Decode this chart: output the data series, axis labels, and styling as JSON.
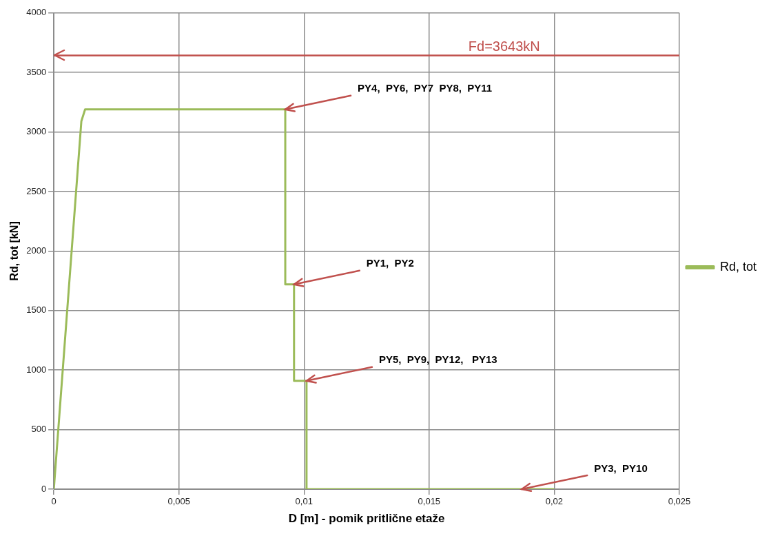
{
  "chart_data": {
    "type": "line",
    "xlabel": "D [m] - pomik pritlične etaže",
    "ylabel": "Rd, tot [kN]",
    "x": [
      0,
      0.0011,
      0.00125,
      0.00925,
      0.00925,
      0.0096,
      0.0096,
      0.0101,
      0.0101,
      0.02
    ],
    "series": [
      {
        "name": "Rd, tot",
        "color": "#9bbb59",
        "values": [
          0,
          3090,
          3190,
          3190,
          1720,
          1720,
          910,
          910,
          0,
          0
        ]
      }
    ],
    "xlim": [
      0,
      0.025
    ],
    "xticks": [
      0,
      {
        "value": 0.005,
        "label": "0,005"
      },
      {
        "value": 0.01,
        "label": "0,01"
      },
      {
        "value": 0.015,
        "label": "0,015"
      },
      {
        "value": 0.02,
        "label": "0,02"
      },
      {
        "value": 0.025,
        "label": "0,025"
      }
    ],
    "ylim": [
      0,
      4000
    ],
    "yticks": [
      0,
      500,
      1000,
      1500,
      2000,
      2500,
      3000,
      3500,
      4000
    ],
    "ref_lines": [
      {
        "axis": "y",
        "value": 3643,
        "label": "Fd=3643kN",
        "color": "#c0504d"
      }
    ],
    "annotations": [
      {
        "text": "PY4,  PY6,  PY7  PY8,  PY11",
        "x": 0.00925,
        "y": 3190
      },
      {
        "text": "PY1,  PY2",
        "x": 0.0096,
        "y": 1720
      },
      {
        "text": "PY5,  PY9,  PY12,   PY13",
        "x": 0.0101,
        "y": 910
      },
      {
        "text": "PY3,  PY10",
        "x": 0.0187,
        "y": 0
      }
    ],
    "grid": true,
    "legend": "right",
    "marker": "none",
    "line_style": "solid"
  }
}
